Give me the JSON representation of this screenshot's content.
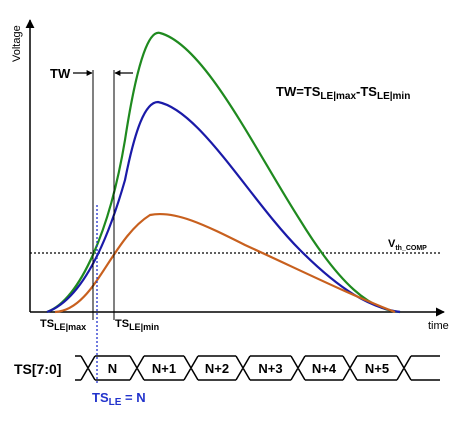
{
  "axes": {
    "y_label": "Voltage",
    "x_label": "time"
  },
  "tw_label": "TW",
  "formula": {
    "p1": "TW=TS",
    "s1": "LE|max",
    "p2": "-TS",
    "s2": "LE|min"
  },
  "threshold": {
    "main": "V",
    "sub": "th_COMP"
  },
  "ts_max": {
    "main": "TS",
    "sub": "LE|max"
  },
  "ts_min": {
    "main": "TS",
    "sub": "LE|min"
  },
  "bus": {
    "label": "TS[7:0]",
    "segments": [
      "N",
      "N+1",
      "N+2",
      "N+3",
      "N+4",
      "N+5"
    ]
  },
  "tsle": {
    "main": "TS",
    "sub": "LE",
    "suffix": " = N"
  },
  "colors": {
    "green": "#1f8a1f",
    "blue": "#1a1aa8",
    "orange": "#c8601e",
    "tsle_blue": "#2233cc"
  }
}
